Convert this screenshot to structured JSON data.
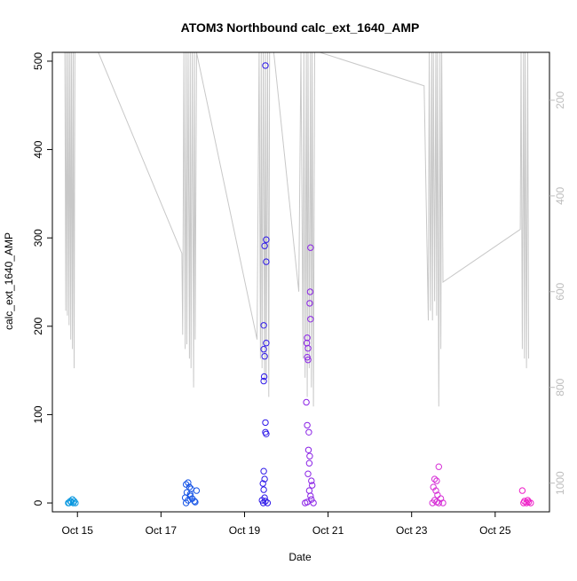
{
  "chart_data": {
    "type": "scatter",
    "title": "ATOM3 Northbound calc_ext_1640_AMP",
    "xlabel": "Date",
    "ylabel": "calc_ext_1640_AMP",
    "x_ticks": [
      "Oct 15",
      "Oct 17",
      "Oct 19",
      "Oct 21",
      "Oct 23",
      "Oct 25"
    ],
    "x_tick_days": [
      15,
      17,
      19,
      21,
      23,
      25
    ],
    "xlim_days": [
      14.4,
      26.3
    ],
    "ylim": [
      -10,
      510
    ],
    "y_ticks": [
      0,
      100,
      200,
      300,
      400,
      500
    ],
    "y2_ticks": [
      200,
      400,
      600,
      800,
      1000
    ],
    "y2lim_reversed": [
      100,
      1060
    ],
    "colors": {
      "axis": "#000000",
      "depth_line": "#c8c8c8",
      "right_axis": "#bdbdbd",
      "groups": [
        "#0a98e0",
        "#1553e6",
        "#2d18e8",
        "#8a22e6",
        "#d62ed6",
        "#ee1fc8"
      ]
    },
    "groups": [
      {
        "day_range": [
          14.75,
          14.95
        ],
        "color_index": 0,
        "points": [
          [
            14.8,
            0
          ],
          [
            14.85,
            1
          ],
          [
            14.9,
            0
          ],
          [
            14.88,
            4
          ],
          [
            14.92,
            2
          ],
          [
            14.78,
            0
          ],
          [
            14.83,
            2
          ],
          [
            14.95,
            0
          ]
        ]
      },
      {
        "day_range": [
          17.55,
          17.85
        ],
        "color_index": 1,
        "points": [
          [
            17.6,
            0
          ],
          [
            17.65,
            3
          ],
          [
            17.7,
            8
          ],
          [
            17.72,
            16
          ],
          [
            17.6,
            21
          ],
          [
            17.65,
            23
          ],
          [
            17.7,
            10
          ],
          [
            17.75,
            5
          ],
          [
            17.8,
            2
          ],
          [
            17.85,
            14
          ],
          [
            17.62,
            12
          ],
          [
            17.68,
            18
          ],
          [
            17.58,
            6
          ],
          [
            17.82,
            1
          ]
        ]
      },
      {
        "day_range": [
          19.4,
          19.6
        ],
        "color_index": 2,
        "points": [
          [
            19.5,
            495
          ],
          [
            19.52,
            298
          ],
          [
            19.48,
            291
          ],
          [
            19.52,
            273
          ],
          [
            19.46,
            201
          ],
          [
            19.52,
            181
          ],
          [
            19.46,
            174
          ],
          [
            19.48,
            166
          ],
          [
            19.47,
            143
          ],
          [
            19.46,
            138
          ],
          [
            19.5,
            91
          ],
          [
            19.5,
            80
          ],
          [
            19.52,
            78
          ],
          [
            19.46,
            36
          ],
          [
            19.48,
            27
          ],
          [
            19.44,
            22
          ],
          [
            19.46,
            15
          ],
          [
            19.48,
            6
          ],
          [
            19.5,
            2
          ],
          [
            19.45,
            0
          ],
          [
            19.55,
            0
          ],
          [
            19.42,
            3
          ]
        ]
      },
      {
        "day_range": [
          20.45,
          20.7
        ],
        "color_index": 3,
        "points": [
          [
            20.58,
            289
          ],
          [
            20.57,
            239
          ],
          [
            20.56,
            226
          ],
          [
            20.58,
            208
          ],
          [
            20.5,
            187
          ],
          [
            20.49,
            181
          ],
          [
            20.52,
            175
          ],
          [
            20.5,
            165
          ],
          [
            20.52,
            162
          ],
          [
            20.48,
            114
          ],
          [
            20.5,
            88
          ],
          [
            20.54,
            80
          ],
          [
            20.53,
            60
          ],
          [
            20.56,
            53
          ],
          [
            20.55,
            45
          ],
          [
            20.52,
            33
          ],
          [
            20.6,
            25
          ],
          [
            20.62,
            20
          ],
          [
            20.55,
            14
          ],
          [
            20.58,
            8
          ],
          [
            20.6,
            4
          ],
          [
            20.5,
            1
          ],
          [
            20.65,
            0
          ],
          [
            20.45,
            0
          ]
        ]
      },
      {
        "day_range": [
          23.5,
          23.75
        ],
        "color_index": 4,
        "points": [
          [
            23.65,
            41
          ],
          [
            23.55,
            27
          ],
          [
            23.6,
            25
          ],
          [
            23.52,
            18
          ],
          [
            23.58,
            14
          ],
          [
            23.62,
            9
          ],
          [
            23.7,
            5
          ],
          [
            23.55,
            3
          ],
          [
            23.6,
            1
          ],
          [
            23.65,
            0
          ],
          [
            23.5,
            0
          ],
          [
            23.75,
            0
          ]
        ]
      },
      {
        "day_range": [
          25.65,
          25.85
        ],
        "color_index": 5,
        "points": [
          [
            25.65,
            14
          ],
          [
            25.7,
            2
          ],
          [
            25.75,
            0
          ],
          [
            25.8,
            1
          ],
          [
            25.85,
            0
          ],
          [
            25.68,
            0
          ],
          [
            25.78,
            3
          ]
        ]
      }
    ],
    "depth_line_days": [
      14.7,
      14.72,
      14.74,
      14.76,
      14.78,
      14.8,
      14.82,
      14.84,
      14.86,
      14.88,
      14.9,
      14.92,
      14.94,
      15.5,
      17.5,
      17.52,
      17.55,
      17.58,
      17.6,
      17.62,
      17.65,
      17.68,
      17.7,
      17.72,
      17.75,
      17.78,
      17.8,
      17.82,
      17.85,
      19.3,
      19.35,
      19.38,
      19.4,
      19.42,
      19.45,
      19.48,
      19.5,
      19.52,
      19.55,
      19.58,
      19.6,
      19.7,
      20.3,
      20.35,
      20.4,
      20.42,
      20.45,
      20.48,
      20.5,
      20.52,
      20.55,
      20.58,
      20.6,
      20.62,
      20.65,
      20.68,
      20.7,
      20.8,
      23.3,
      23.4,
      23.42,
      23.45,
      23.48,
      23.5,
      23.52,
      23.55,
      23.58,
      23.6,
      23.62,
      23.65,
      23.68,
      23.7,
      23.72,
      23.75,
      25.6,
      25.62,
      25.65,
      25.68,
      25.7,
      25.72,
      25.75,
      25.78,
      25.8
    ],
    "depth_line_values": [
      100,
      640,
      100,
      650,
      100,
      670,
      100,
      700,
      100,
      720,
      100,
      760,
      100,
      100,
      520,
      690,
      100,
      720,
      100,
      710,
      100,
      740,
      100,
      760,
      100,
      800,
      100,
      700,
      100,
      700,
      100,
      740,
      100,
      760,
      100,
      790,
      100,
      780,
      100,
      820,
      100,
      100,
      600,
      100,
      740,
      100,
      780,
      100,
      820,
      100,
      760,
      100,
      800,
      100,
      840,
      100,
      100,
      100,
      170,
      660,
      100,
      640,
      100,
      660,
      100,
      620,
      100,
      650,
      100,
      840,
      100,
      720,
      100,
      580,
      470,
      100,
      720,
      100,
      740,
      100,
      760,
      100,
      740
    ]
  }
}
